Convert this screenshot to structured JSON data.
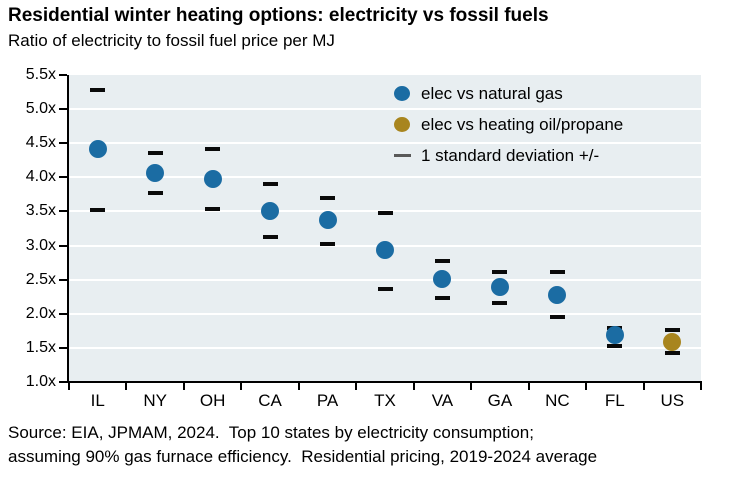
{
  "chart_data": {
    "type": "scatter",
    "title": "Residential winter heating options: electricity vs fossil fuels",
    "subtitle": "Ratio of electricity to fossil fuel price per MJ",
    "categories": [
      "IL",
      "NY",
      "OH",
      "CA",
      "PA",
      "TX",
      "VA",
      "GA",
      "NC",
      "FL",
      "US"
    ],
    "ylim": [
      1.0,
      5.5
    ],
    "y_tick_labels": [
      "5.5x",
      "5.0x",
      "4.5x",
      "4.0x",
      "3.5x",
      "3.0x",
      "2.5x",
      "2.0x",
      "1.5x",
      "1.0x"
    ],
    "y_tick_values": [
      5.5,
      5.0,
      4.5,
      4.0,
      3.5,
      3.0,
      2.5,
      2.0,
      1.5,
      1.0
    ],
    "grid_values": [
      5.0,
      4.5,
      4.0,
      3.5,
      3.0,
      2.5,
      2.0,
      1.5
    ],
    "grid_on": true,
    "legend_position": "upper-right",
    "series": [
      {
        "name": "elec vs natural gas",
        "color": "#1b6ca3",
        "marker": "dot",
        "values": [
          4.41,
          4.07,
          3.97,
          3.51,
          3.37,
          2.93,
          2.51,
          2.39,
          2.28,
          1.69,
          null
        ]
      },
      {
        "name": "elec vs heating oil/propane",
        "color": "#a8851e",
        "marker": "dot",
        "values": [
          null,
          null,
          null,
          null,
          null,
          null,
          null,
          null,
          null,
          null,
          1.59
        ]
      }
    ],
    "std_dev": {
      "label": "1 standard deviation +/-",
      "upper": [
        5.28,
        4.35,
        4.41,
        3.9,
        3.7,
        3.48,
        2.78,
        2.61,
        2.61,
        1.79,
        1.76
      ],
      "lower": [
        3.52,
        3.77,
        3.53,
        3.13,
        3.02,
        2.36,
        2.23,
        2.16,
        1.96,
        1.53,
        1.43
      ]
    },
    "legend": [
      {
        "label": "elec vs natural gas",
        "marker": "dot",
        "color": "#1b6ca3"
      },
      {
        "label": "elec vs heating oil/propane",
        "marker": "dot",
        "color": "#a8851e"
      },
      {
        "label": "1 standard deviation +/-",
        "marker": "dash",
        "color": "#595959"
      }
    ],
    "colors": {
      "plot_background": "#e8eef1",
      "gridline": "#ffffff",
      "axis": "#000000",
      "dash": "#0a0a0a",
      "text": "#000000"
    }
  },
  "footer": {
    "line1": "Source: EIA, JPMAM, 2024.  Top 10 states by electricity consumption;",
    "line2": "assuming 90% gas furnace efficiency.  Residential pricing, 2019-2024 average"
  }
}
